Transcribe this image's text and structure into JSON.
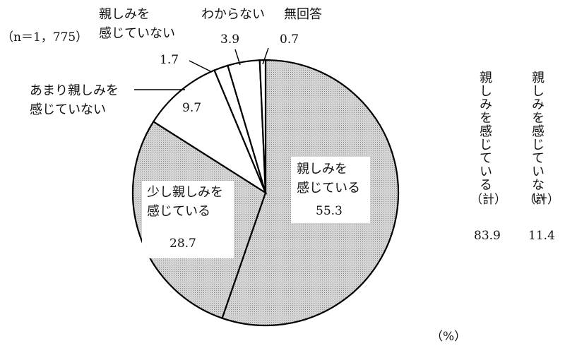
{
  "chart_data": {
    "type": "pie",
    "sample_label": "（n＝1，775）",
    "unit_label": "（%）",
    "slices": [
      {
        "label_lines": [
          "親しみを",
          "感じている"
        ],
        "value": 55.3,
        "value_label": "55.3",
        "color": "#cfcfcf"
      },
      {
        "label_lines": [
          "少し親しみを",
          "感じている"
        ],
        "value": 28.7,
        "value_label": "28.7",
        "color": "#cfcfcf"
      },
      {
        "label_lines": [
          "あまり親しみを",
          "感じていない"
        ],
        "value": 9.7,
        "value_label": "9.7",
        "color": "#ffffff"
      },
      {
        "label_lines": [
          "親しみを",
          "感じていない"
        ],
        "value": 1.7,
        "value_label": "1.7",
        "color": "#ffffff"
      },
      {
        "label_lines": [
          "わからない"
        ],
        "value": 3.9,
        "value_label": "3.9",
        "color": "#ffffff"
      },
      {
        "label_lines": [
          "無回答"
        ],
        "value": 0.7,
        "value_label": "0.7",
        "color": "#ffffff"
      }
    ],
    "totals": [
      {
        "heading": "親しみを感じている",
        "suffix": "（計）",
        "value": 83.9,
        "value_label": "83.9"
      },
      {
        "heading": "親しみを感じていない",
        "suffix": "（計）",
        "value": 11.4,
        "value_label": "11.4"
      }
    ]
  }
}
